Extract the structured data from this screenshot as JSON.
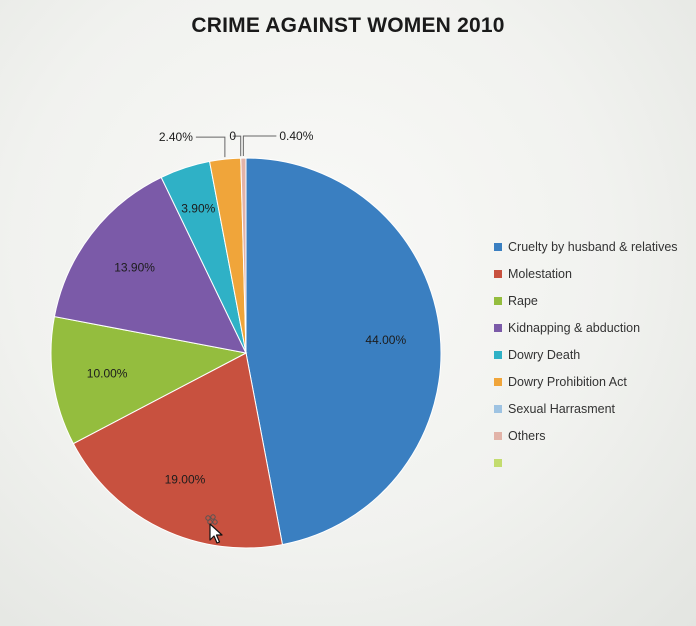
{
  "chart_data": {
    "type": "pie",
    "title": "CRIME AGAINST WOMEN 2010",
    "slices": [
      {
        "name": "Cruelty by husband & relatives",
        "value": 44.0,
        "label": "44.00%",
        "color": "#3a7fc1"
      },
      {
        "name": "Molestation",
        "value": 19.0,
        "label": "19.00%",
        "color": "#c8513f"
      },
      {
        "name": "Rape",
        "value": 10.0,
        "label": "10.00%",
        "color": "#94bd3e"
      },
      {
        "name": "Kidnapping & abduction",
        "value": 13.9,
        "label": "13.90%",
        "color": "#7b5aa8"
      },
      {
        "name": "Dowry Death",
        "value": 3.9,
        "label": "3.90%",
        "color": "#2fb1c6"
      },
      {
        "name": "Dowry Prohibition Act",
        "value": 2.4,
        "label": "2.40%",
        "color": "#f0a53a"
      },
      {
        "name": "Sexual Harrasment",
        "value": 0,
        "label": "0",
        "color": "#9ec3e2"
      },
      {
        "name": "Others",
        "value": 0.4,
        "label": "0.40%",
        "color": "#e2b3a8"
      },
      {
        "name": "",
        "value": 0,
        "label": "",
        "color": "#c3dc6e"
      }
    ],
    "legend_position": "right"
  }
}
